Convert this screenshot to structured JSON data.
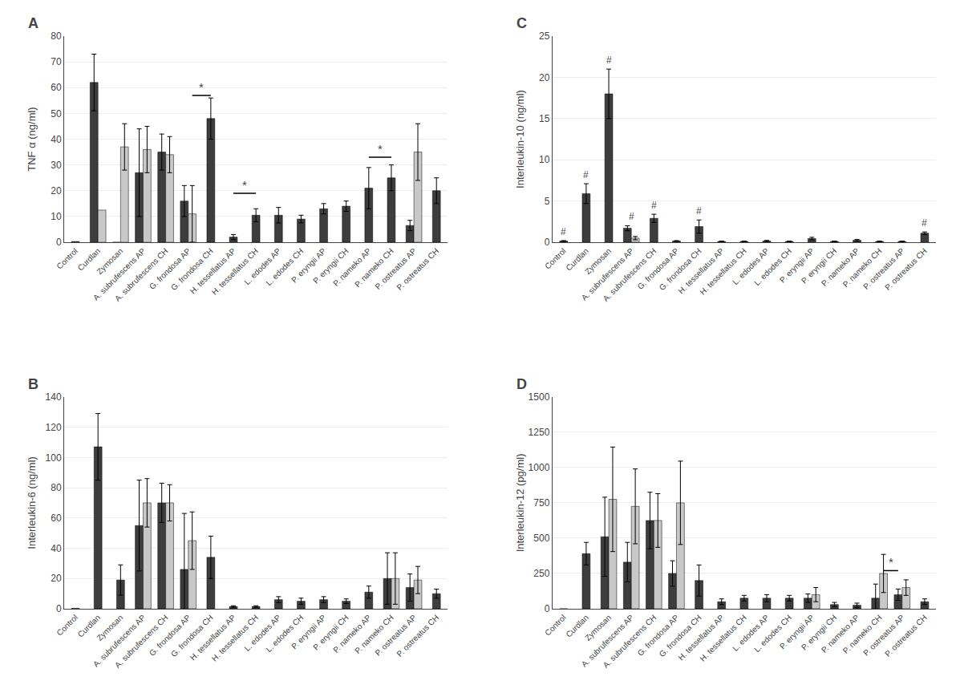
{
  "chart_data": [
    {
      "type": "bar",
      "title": "A",
      "ylabel": "TNF α (ng/ml)",
      "categories": [
        "Control",
        "Curdlan",
        "Zymosan",
        "A. subrufescens AP",
        "A. subrufescens CH",
        "G. frondosa AP",
        "G. frondosa CH",
        "H. tessellatus AP",
        "H. tessellatus CH",
        "L. edodes AP",
        "L. edodes CH",
        "P. eryngii AP",
        "P. eryngii CH",
        "P. nameko AP",
        "P. nameko CH",
        "P. ostreatus AP",
        "P. ostreatus CH"
      ],
      "series": [
        {
          "color": "#3d3d3d",
          "values": [
            0.3,
            62,
            0,
            27,
            35,
            16,
            48,
            2,
            10.5,
            10.5,
            9,
            13,
            14,
            21,
            25,
            6.5,
            20
          ],
          "errors": [
            0,
            11,
            0,
            17,
            7,
            6,
            8,
            1,
            2.5,
            3,
            1.5,
            2,
            2,
            8,
            5,
            2,
            5
          ]
        },
        {
          "color": "#c8c8c8",
          "values": [
            0,
            12.5,
            37,
            36,
            34,
            11,
            0,
            0,
            0,
            0,
            0,
            0,
            0,
            0,
            0,
            35,
            0
          ],
          "errors": [
            0,
            0,
            9,
            9,
            7,
            11,
            0,
            0,
            0,
            0,
            0,
            0,
            0,
            0,
            0,
            11,
            0
          ]
        }
      ],
      "ylim": [
        0,
        80
      ],
      "yticks": [
        0,
        10,
        20,
        30,
        40,
        50,
        60,
        70,
        80
      ],
      "grid": true,
      "annotations": [
        {
          "from": "G. frondosa AP",
          "to": "G. frondosa CH",
          "y": 57,
          "text": "*"
        },
        {
          "from": "H. tessellatus AP",
          "to": "H. tessellatus CH",
          "y": 19,
          "text": "*"
        },
        {
          "from": "P. nameko AP",
          "to": "P. nameko CH",
          "y": 33,
          "text": "*"
        }
      ]
    },
    {
      "type": "bar",
      "title": "C",
      "ylabel": "Interleukin-10 (ng/ml)",
      "categories": [
        "Control",
        "Curdlan",
        "Zymosan",
        "A. subrufescens AP",
        "A. subrufescens CH",
        "G. frondosa AP",
        "G. frondosa CH",
        "H. tessellatus AP",
        "H. tessellatus CH",
        "L. edodes AP",
        "L. edodes CH",
        "P. eryngii AP",
        "P. eryngii CH",
        "P. nameko AP",
        "P. nameko CH",
        "P. ostreatus AP",
        "P. ostreatus CH"
      ],
      "series": [
        {
          "color": "#3d3d3d",
          "values": [
            0.15,
            5.9,
            18,
            1.7,
            2.9,
            0.15,
            1.9,
            0.1,
            0.1,
            0.15,
            0.1,
            0.45,
            0.1,
            0.25,
            0.1,
            0.1,
            1.1
          ],
          "errors": [
            0.05,
            1.2,
            3.0,
            0.3,
            0.5,
            0.05,
            0.8,
            0.05,
            0.05,
            0.08,
            0.05,
            0.15,
            0.05,
            0.1,
            0.05,
            0.05,
            0.15
          ]
        },
        {
          "color": "#c8c8c8",
          "values": [
            0,
            0,
            0,
            0.5,
            0,
            0,
            0,
            0,
            0,
            0,
            0,
            0,
            0,
            0,
            0,
            0,
            0
          ],
          "errors": [
            0,
            0,
            0,
            0.2,
            0,
            0,
            0,
            0,
            0,
            0,
            0,
            0,
            0,
            0,
            0,
            0,
            0
          ]
        }
      ],
      "ylim": [
        0,
        25
      ],
      "yticks": [
        0,
        5,
        10,
        15,
        20,
        25
      ],
      "grid": true,
      "annotations": [
        {
          "category": "Control",
          "text": "#"
        },
        {
          "category": "Curdlan",
          "text": "#"
        },
        {
          "category": "Zymosan",
          "text": "#"
        },
        {
          "category": "A. subrufescens AP",
          "text": "#"
        },
        {
          "category": "A. subrufescens CH",
          "text": "#"
        },
        {
          "category": "G. frondosa CH",
          "text": "#"
        },
        {
          "category": "P. ostreatus CH",
          "text": "#"
        }
      ]
    },
    {
      "type": "bar",
      "title": "B",
      "ylabel": "Interleukin-6 (ng/ml)",
      "categories": [
        "Control",
        "Curdlan",
        "Zymosan",
        "A. subrufescens AP",
        "A. subrufescens CH",
        "G. frondosa AP",
        "G. frondosa CH",
        "H. tessellatus AP",
        "H. tessellatus CH",
        "L. edodes AP",
        "L. edodes CH",
        "P. eryngii AP",
        "P. eryngii CH",
        "P. nameko AP",
        "P. nameko CH",
        "P. ostreatus AP",
        "P. ostreatus CH"
      ],
      "series": [
        {
          "color": "#3d3d3d",
          "values": [
            0.3,
            107,
            19,
            55,
            70,
            26,
            34,
            1.5,
            1.5,
            6,
            5,
            6,
            5,
            11,
            20,
            14,
            10
          ],
          "errors": [
            0,
            22,
            10,
            30,
            13,
            37,
            14,
            0.5,
            0.5,
            2,
            2,
            2,
            1.5,
            4,
            17,
            9,
            3
          ]
        },
        {
          "color": "#c8c8c8",
          "values": [
            0,
            0,
            0,
            70,
            70,
            45,
            0,
            0,
            0,
            0,
            0,
            0,
            0,
            0,
            20,
            19,
            0
          ],
          "errors": [
            0,
            0,
            0,
            16,
            12,
            19,
            null,
            0,
            0,
            0,
            0,
            0,
            0,
            0,
            17,
            9,
            0
          ]
        }
      ],
      "ylim": [
        0,
        140
      ],
      "yticks": [
        0,
        20,
        40,
        60,
        80,
        100,
        120,
        140
      ],
      "grid": true
    },
    {
      "type": "bar",
      "title": "D",
      "ylabel": "Interleukin-12 (pg/ml)",
      "categories": [
        "Control",
        "Curdlan",
        "Zymosan",
        "A. subrufescens AP",
        "A. subrufescens CH",
        "G. frondosa AP",
        "G. frondosa CH",
        "H. tessellatus AP",
        "H. tessellatus CH",
        "L. edodes AP",
        "L. edodes CH",
        "P. eryngii AP",
        "P. eryngii CH",
        "P. nameko AP",
        "P. nameko CH",
        "P. ostreatus AP",
        "P. ostreatus CH"
      ],
      "series": [
        {
          "color": "#3d3d3d",
          "values": [
            0,
            390,
            510,
            330,
            625,
            250,
            200,
            50,
            75,
            75,
            75,
            75,
            30,
            25,
            75,
            100,
            50
          ],
          "errors": [
            0,
            80,
            280,
            140,
            200,
            90,
            110,
            20,
            20,
            25,
            20,
            30,
            15,
            15,
            100,
            40,
            20
          ]
        },
        {
          "color": "#c8c8c8",
          "values": [
            0,
            0,
            775,
            725,
            625,
            750,
            0,
            0,
            0,
            0,
            0,
            100,
            0,
            0,
            250,
            150,
            0
          ],
          "errors": [
            0,
            0,
            370,
            265,
            190,
            295,
            0,
            0,
            0,
            0,
            0,
            50,
            0,
            0,
            135,
            55,
            0
          ]
        }
      ],
      "ylim": [
        0,
        1500
      ],
      "yticks": [
        0,
        250,
        500,
        750,
        1000,
        1250,
        1500
      ],
      "grid": true,
      "annotations": [
        {
          "from": "P. nameko CH",
          "to": "P. ostreatus AP",
          "y": 270,
          "text": "*"
        }
      ]
    }
  ]
}
